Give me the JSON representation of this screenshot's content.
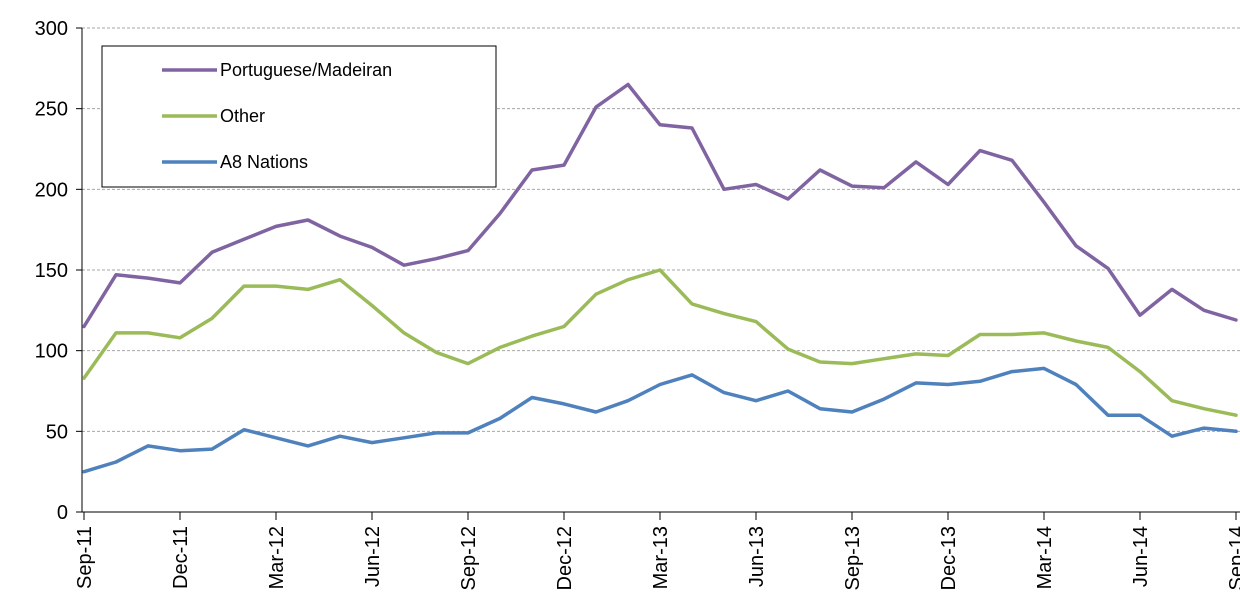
{
  "chart_data": {
    "type": "line",
    "title": "",
    "xlabel": "",
    "ylabel": "",
    "ylim": [
      0,
      300
    ],
    "yticks": [
      0,
      50,
      100,
      150,
      200,
      250,
      300
    ],
    "grid": true,
    "legend_position": "top-left",
    "x": [
      "Sep-11",
      "Oct-11",
      "Nov-11",
      "Dec-11",
      "Jan-12",
      "Feb-12",
      "Mar-12",
      "Apr-12",
      "May-12",
      "Jun-12",
      "Jul-12",
      "Aug-12",
      "Sep-12",
      "Oct-12",
      "Nov-12",
      "Dec-12",
      "Jan-13",
      "Feb-13",
      "Mar-13",
      "Apr-13",
      "May-13",
      "Jun-13",
      "Jul-13",
      "Aug-13",
      "Sep-13",
      "Oct-13",
      "Nov-13",
      "Dec-13",
      "Jan-14",
      "Feb-14",
      "Mar-14",
      "Apr-14",
      "May-14",
      "Jun-14",
      "Jul-14",
      "Aug-14",
      "Sep-14"
    ],
    "xtick_labels": [
      "Sep-11",
      "Dec-11",
      "Mar-12",
      "Jun-12",
      "Sep-12",
      "Dec-12",
      "Mar-13",
      "Jun-13",
      "Sep-13",
      "Dec-13",
      "Mar-14",
      "Jun-14",
      "Sep-14"
    ],
    "series": [
      {
        "name": "Portuguese/Madeiran",
        "color": "#8064a2",
        "values": [
          115,
          147,
          145,
          142,
          161,
          169,
          177,
          181,
          171,
          164,
          153,
          157,
          162,
          185,
          212,
          215,
          251,
          265,
          240,
          238,
          200,
          203,
          194,
          212,
          202,
          201,
          217,
          203,
          224,
          218,
          192,
          165,
          151,
          122,
          138,
          125,
          119
        ]
      },
      {
        "name": "Other",
        "color": "#9bbb59",
        "values": [
          83,
          111,
          111,
          108,
          120,
          140,
          140,
          138,
          144,
          128,
          111,
          99,
          92,
          102,
          109,
          115,
          135,
          144,
          150,
          129,
          123,
          118,
          101,
          93,
          92,
          95,
          98,
          97,
          110,
          110,
          111,
          106,
          102,
          87,
          69,
          64,
          60
        ]
      },
      {
        "name": "A8 Nations",
        "color": "#4f81bd",
        "values": [
          25,
          31,
          41,
          38,
          39,
          51,
          46,
          41,
          47,
          43,
          46,
          49,
          49,
          58,
          71,
          67,
          62,
          69,
          79,
          85,
          74,
          69,
          75,
          64,
          62,
          70,
          80,
          79,
          81,
          87,
          89,
          79,
          60,
          60,
          47,
          52,
          50
        ]
      }
    ]
  }
}
